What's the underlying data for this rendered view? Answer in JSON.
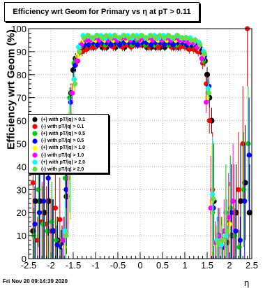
{
  "title": "Efficiency wrt Geom for Primary vs   η at pT > 0.11",
  "ylabel": "Efficiency wrt Geom (%)",
  "xlabel": "η",
  "footer": "Fri Nov 20 09:14:39 2020",
  "chart_data": {
    "type": "scatter",
    "title": "Efficiency wrt Geom for Primary vs   η at pT > 0.11",
    "xlabel": "η",
    "ylabel": "Efficiency wrt Geom (%)",
    "xlim": [
      -2.5,
      2.5
    ],
    "ylim": [
      0,
      100
    ],
    "xticks": [
      "-2.5",
      "-2",
      "-1.5",
      "-1",
      "-0.5",
      "0",
      "0.5",
      "1",
      "1.5",
      "2",
      "2.5"
    ],
    "yticks": [
      "0",
      "10",
      "20",
      "30",
      "40",
      "50",
      "60",
      "70",
      "80",
      "90",
      "100"
    ],
    "grid": true,
    "legend_position": "left-middle",
    "series": [
      {
        "name": "(+) with pT/|q| > 0.1",
        "color": "#000000",
        "x": [
          -2.4,
          -2.35,
          -2.25,
          -2.15,
          -2.05,
          -1.95,
          -1.85,
          -1.75,
          -1.65,
          -1.6,
          -1.55,
          -1.5,
          -1.45,
          -1.35,
          -1.25,
          -1.15,
          -1.05,
          -0.95,
          -0.85,
          -0.75,
          -0.65,
          -0.55,
          -0.45,
          -0.35,
          -0.25,
          -0.15,
          -0.05,
          0.05,
          0.15,
          0.25,
          0.35,
          0.45,
          0.55,
          0.65,
          0.75,
          0.85,
          0.95,
          1.05,
          1.15,
          1.25,
          1.35,
          1.45,
          1.5,
          1.55,
          1.6,
          1.65,
          1.75,
          1.85,
          1.95,
          2.05,
          2.15,
          2.25,
          2.35,
          2.45
        ],
        "y": [
          12,
          25,
          25,
          20,
          25,
          12,
          8,
          6,
          27,
          58,
          72,
          82,
          87,
          90,
          91,
          92,
          92,
          93,
          92,
          92,
          93,
          92,
          93,
          92,
          93,
          93,
          93,
          93,
          92,
          92,
          92,
          92,
          92,
          93,
          92,
          92,
          93,
          92,
          92,
          91,
          90,
          86,
          80,
          70,
          60,
          25,
          10,
          5,
          7,
          10,
          20,
          25,
          33,
          20
        ]
      },
      {
        "name": "(-) with pT/|q| > 0.1",
        "color": "#ff0000",
        "x": [
          -2.4,
          -2.3,
          -2.2,
          -2.1,
          -2.0,
          -1.9,
          -1.8,
          -1.7,
          -1.62,
          -1.55,
          -1.48,
          -1.4,
          -1.3,
          -1.2,
          -1.1,
          -1.0,
          -0.9,
          -0.8,
          -0.7,
          -0.6,
          -0.5,
          -0.4,
          -0.3,
          -0.2,
          -0.1,
          0.0,
          0.1,
          0.2,
          0.3,
          0.4,
          0.5,
          0.6,
          0.7,
          0.8,
          0.9,
          1.0,
          1.1,
          1.2,
          1.3,
          1.4,
          1.48,
          1.55,
          1.62,
          1.7,
          1.8,
          1.9,
          2.0,
          2.1,
          2.2,
          2.3,
          2.4
        ],
        "y": [
          33,
          8,
          16,
          15,
          12,
          22,
          17,
          8,
          35,
          62,
          78,
          86,
          90,
          91,
          92,
          92,
          93,
          92,
          93,
          92,
          93,
          92,
          93,
          92,
          93,
          93,
          93,
          92,
          93,
          92,
          93,
          93,
          92,
          92,
          92,
          92,
          91,
          91,
          90,
          85,
          76,
          60,
          30,
          6,
          8,
          8,
          16,
          20,
          30,
          50,
          100
        ]
      },
      {
        "name": "(+) with pT/|q| > 0.5",
        "color": "#00cc00",
        "x": [
          -2.38,
          -2.28,
          -2.18,
          -2.08,
          -1.98,
          -1.88,
          -1.78,
          -1.68,
          -1.58,
          -1.48,
          -1.38,
          -1.28,
          -1.18,
          -1.08,
          -0.98,
          -0.88,
          -0.78,
          -0.68,
          -0.58,
          -0.48,
          -0.38,
          -0.28,
          -0.18,
          -0.08,
          0.02,
          0.12,
          0.22,
          0.32,
          0.42,
          0.52,
          0.62,
          0.72,
          0.82,
          0.92,
          1.02,
          1.12,
          1.22,
          1.32,
          1.42,
          1.52,
          1.62,
          1.72,
          1.82,
          1.92,
          2.02,
          2.12,
          2.22,
          2.32,
          2.42
        ],
        "y": [
          10,
          30,
          15,
          12,
          16,
          8,
          5,
          35,
          70,
          85,
          92,
          93,
          93,
          94,
          93,
          94,
          93,
          94,
          94,
          93,
          94,
          94,
          93,
          94,
          94,
          93,
          94,
          93,
          94,
          94,
          93,
          94,
          93,
          94,
          93,
          93,
          93,
          92,
          86,
          72,
          20,
          6,
          8,
          20,
          22,
          10,
          5,
          30,
          50
        ]
      },
      {
        "name": "(-) with pT/|q| > 0.5",
        "color": "#0000ff",
        "x": [
          -2.36,
          -2.26,
          -2.16,
          -2.06,
          -1.96,
          -1.86,
          -1.76,
          -1.66,
          -1.56,
          -1.46,
          -1.36,
          -1.26,
          -1.16,
          -1.06,
          -0.96,
          -0.86,
          -0.76,
          -0.66,
          -0.56,
          -0.46,
          -0.36,
          -0.26,
          -0.16,
          -0.06,
          0.04,
          0.14,
          0.24,
          0.34,
          0.44,
          0.54,
          0.64,
          0.74,
          0.84,
          0.94,
          1.04,
          1.14,
          1.24,
          1.34,
          1.44,
          1.54,
          1.64,
          1.74,
          1.84,
          1.94,
          2.04,
          2.14,
          2.24,
          2.34,
          2.44
        ],
        "y": [
          15,
          20,
          25,
          35,
          12,
          6,
          5,
          30,
          68,
          84,
          90,
          93,
          93,
          94,
          93,
          94,
          94,
          93,
          94,
          93,
          94,
          94,
          94,
          93,
          94,
          94,
          93,
          94,
          94,
          93,
          94,
          93,
          94,
          94,
          93,
          93,
          93,
          92,
          88,
          75,
          22,
          8,
          5,
          12,
          20,
          12,
          8,
          25,
          45
        ]
      },
      {
        "name": "(+) with pT/|q| > 1.0",
        "color": "#ffff00",
        "x": [
          -1.7,
          -1.6,
          -1.5,
          -1.4,
          -1.3,
          -1.2,
          -1.1,
          -1.0,
          -0.9,
          -0.8,
          -0.7,
          -0.6,
          -0.5,
          -0.4,
          -0.3,
          -0.2,
          -0.1,
          0.0,
          0.1,
          0.2,
          0.3,
          0.4,
          0.5,
          0.6,
          0.7,
          0.8,
          0.9,
          1.0,
          1.1,
          1.2,
          1.3,
          1.4,
          1.5,
          1.6,
          1.7,
          1.8,
          1.9,
          2.0
        ],
        "y": [
          5,
          40,
          75,
          88,
          94,
          95,
          95,
          95,
          96,
          95,
          96,
          95,
          96,
          96,
          95,
          96,
          96,
          95,
          96,
          95,
          96,
          95,
          96,
          95,
          96,
          95,
          95,
          95,
          94,
          94,
          92,
          88,
          70,
          25,
          6,
          8,
          10,
          15
        ]
      },
      {
        "name": "(-) with pT/|q| > 1.0",
        "color": "#ff00ff",
        "x": [
          -1.72,
          -1.62,
          -1.52,
          -1.42,
          -1.32,
          -1.22,
          -1.12,
          -1.02,
          -0.92,
          -0.82,
          -0.72,
          -0.62,
          -0.52,
          -0.42,
          -0.32,
          -0.22,
          -0.12,
          -0.02,
          0.08,
          0.18,
          0.28,
          0.38,
          0.48,
          0.58,
          0.68,
          0.78,
          0.88,
          0.98,
          1.08,
          1.18,
          1.28,
          1.38,
          1.48,
          1.58,
          1.68,
          1.78,
          1.88,
          1.98,
          2.08
        ],
        "y": [
          8,
          38,
          72,
          86,
          93,
          95,
          95,
          96,
          95,
          96,
          95,
          96,
          95,
          96,
          96,
          95,
          96,
          95,
          96,
          96,
          95,
          96,
          95,
          96,
          95,
          96,
          95,
          95,
          94,
          94,
          92,
          87,
          68,
          22,
          7,
          10,
          12,
          18,
          25
        ]
      },
      {
        "name": "(+) with pT/|q| > 2.0",
        "color": "#00ffff",
        "x": [
          -1.68,
          -1.58,
          -1.48,
          -1.38,
          -1.28,
          -1.18,
          -1.08,
          -0.98,
          -0.88,
          -0.78,
          -0.68,
          -0.58,
          -0.48,
          -0.38,
          -0.28,
          -0.18,
          -0.08,
          0.02,
          0.12,
          0.22,
          0.32,
          0.42,
          0.52,
          0.62,
          0.72,
          0.82,
          0.92,
          1.02,
          1.12,
          1.22,
          1.32,
          1.42,
          1.52,
          1.62,
          1.72,
          1.82,
          1.92
        ],
        "y": [
          12,
          45,
          78,
          92,
          97,
          97,
          96,
          97,
          97,
          96,
          97,
          97,
          96,
          97,
          97,
          96,
          97,
          97,
          96,
          97,
          97,
          96,
          97,
          97,
          96,
          97,
          96,
          96,
          96,
          95,
          94,
          90,
          74,
          28,
          8,
          6,
          10
        ]
      },
      {
        "name": "(-) with pT/|q| > 2.0",
        "color": "#66dd44",
        "x": [
          -1.66,
          -1.56,
          -1.46,
          -1.36,
          -1.26,
          -1.16,
          -1.06,
          -0.96,
          -0.86,
          -0.76,
          -0.66,
          -0.56,
          -0.46,
          -0.36,
          -0.26,
          -0.16,
          -0.06,
          0.04,
          0.14,
          0.24,
          0.34,
          0.44,
          0.54,
          0.64,
          0.74,
          0.84,
          0.94,
          1.04,
          1.14,
          1.24,
          1.34,
          1.44,
          1.54,
          1.64,
          1.74,
          1.84,
          1.94
        ],
        "y": [
          10,
          42,
          76,
          90,
          96,
          97,
          96,
          97,
          96,
          97,
          96,
          97,
          96,
          97,
          96,
          97,
          96,
          97,
          96,
          97,
          96,
          97,
          96,
          97,
          96,
          97,
          96,
          96,
          95,
          95,
          93,
          89,
          72,
          26,
          7,
          8,
          12
        ]
      }
    ]
  }
}
